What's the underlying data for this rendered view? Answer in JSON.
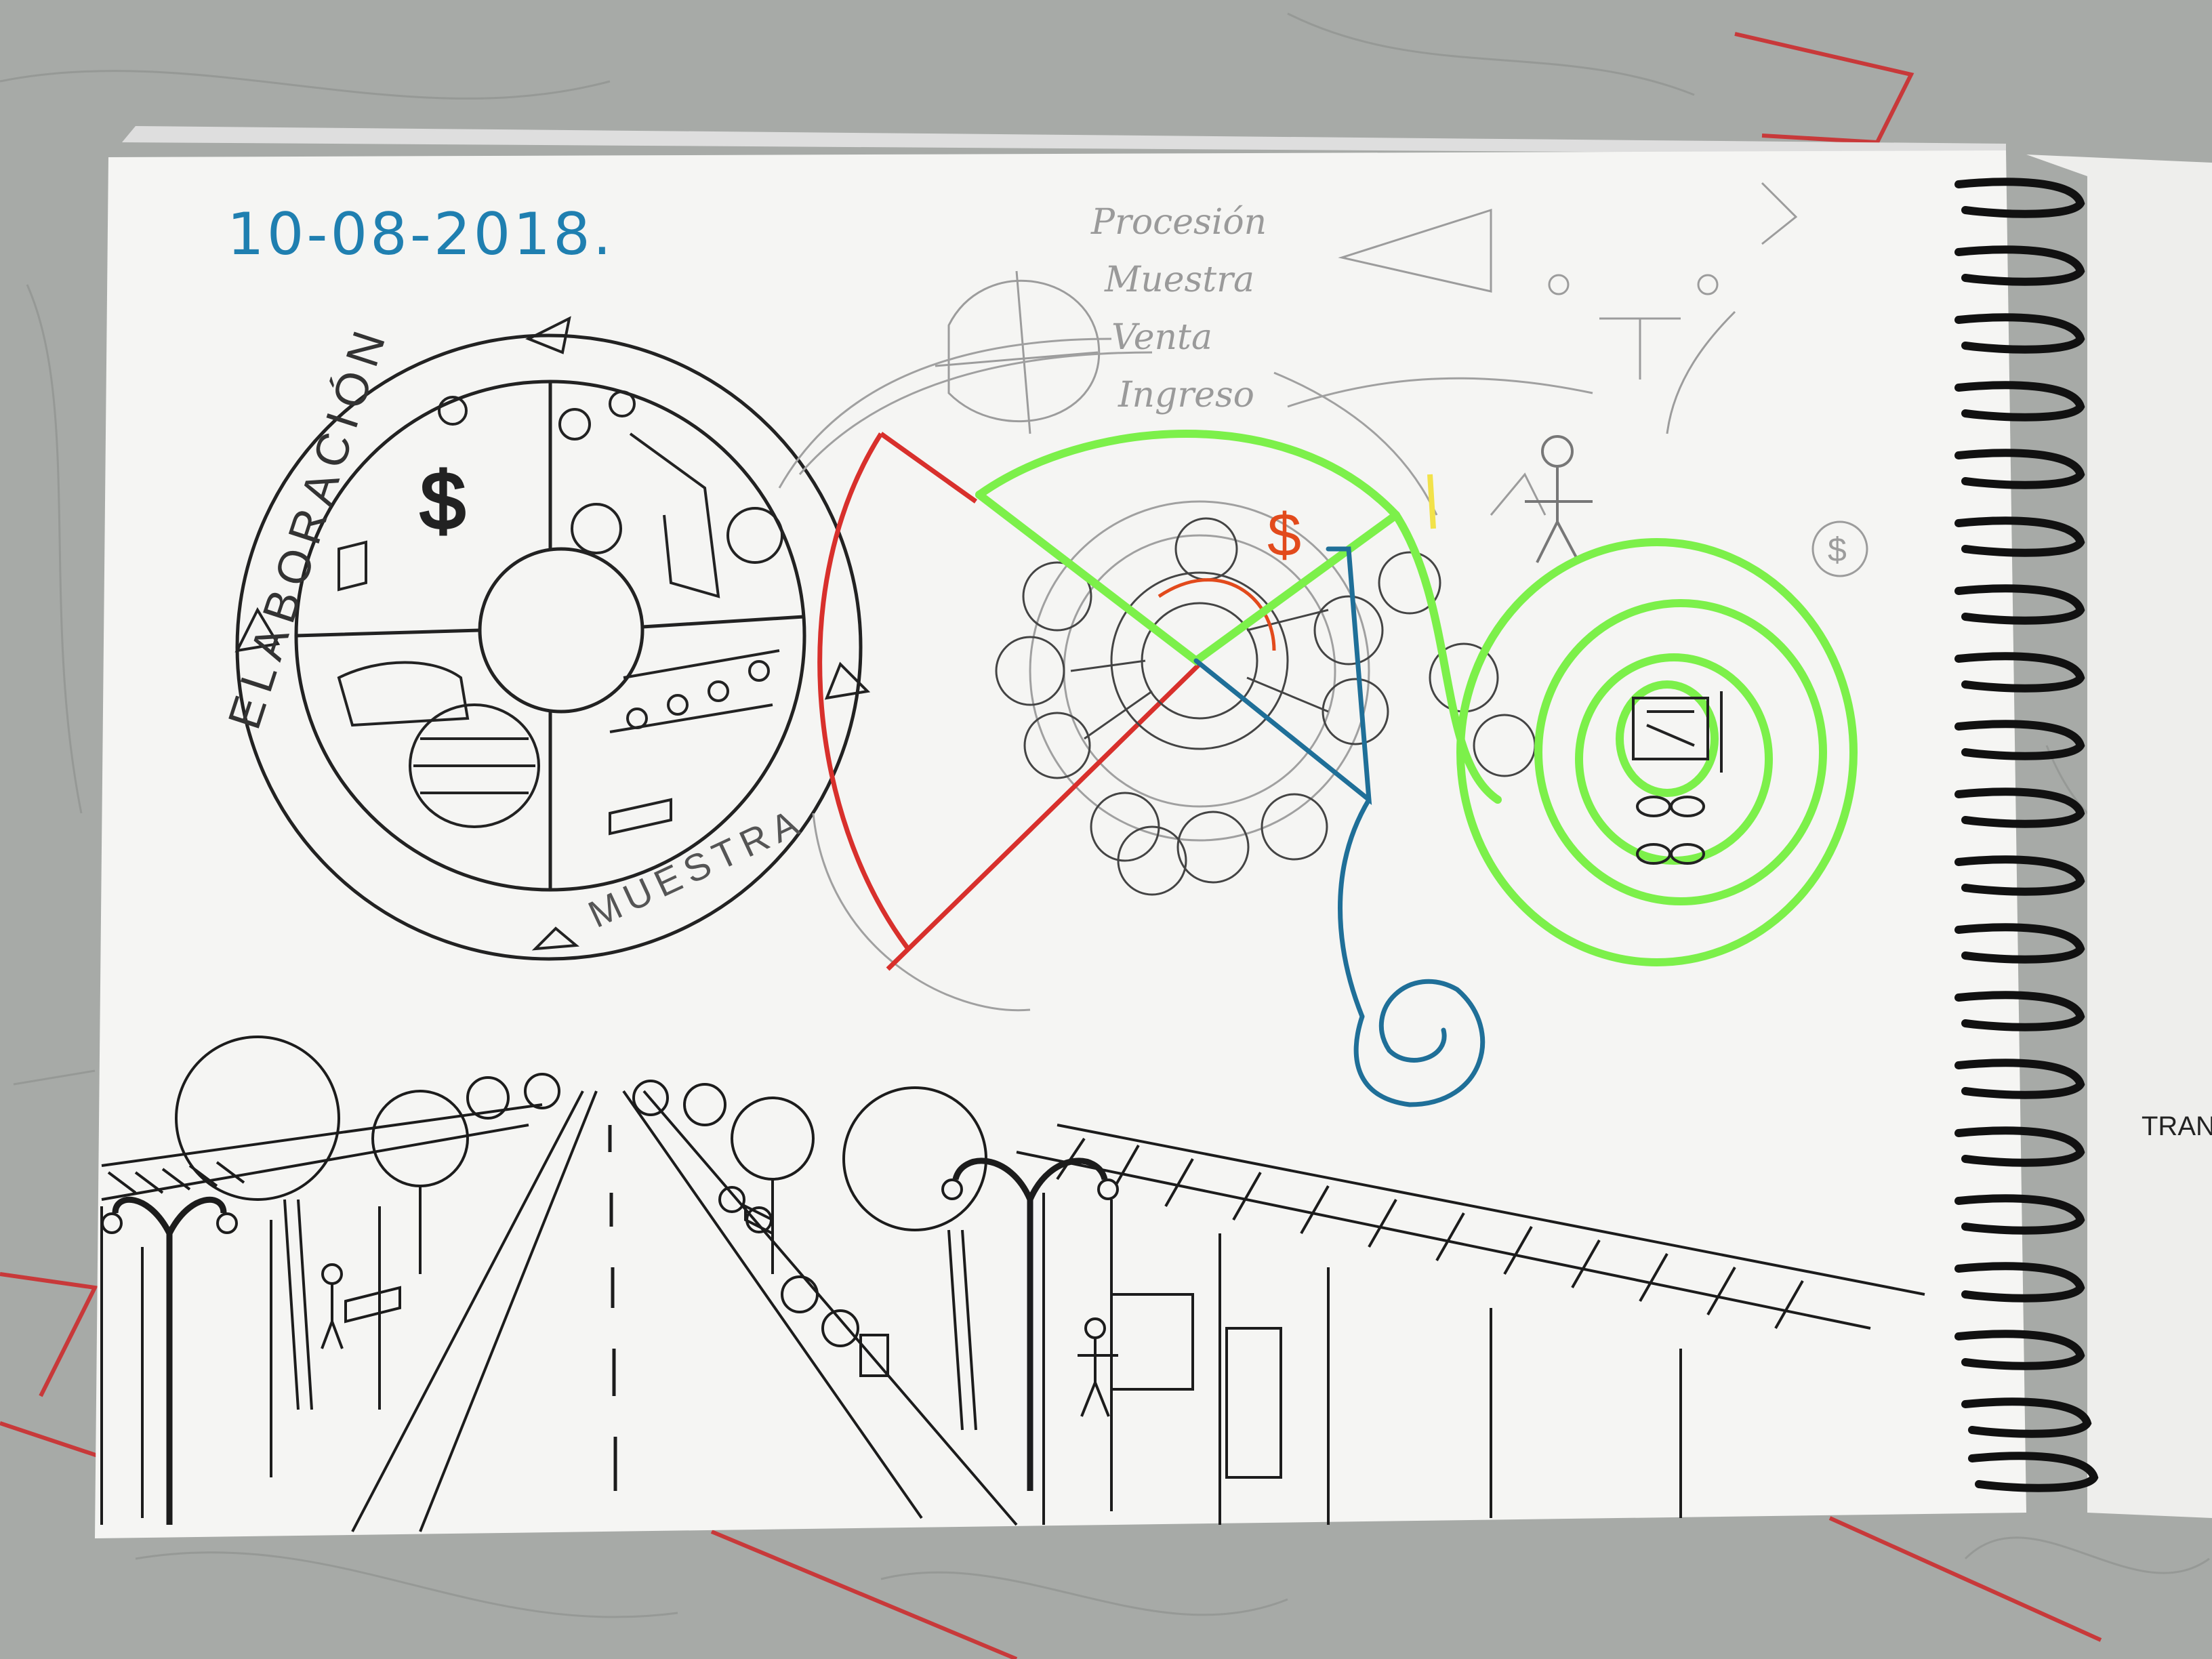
{
  "sketchbook": {
    "date": "10-08-2018.",
    "notes": [
      "Procesión",
      "Muestra",
      "Venta",
      "Ingreso"
    ],
    "ring_text": [
      "ELABORACIÓN",
      "MUESTRA"
    ],
    "dollar_mark": "$",
    "next_page_text": "TRANS"
  },
  "colors": {
    "table": "#a9aca9",
    "paper": "#f4f4f2",
    "pencil": "#8a8a8a",
    "ink": "#1c1c1c",
    "date_blue": "#1f7fb0",
    "marker_red": "#d8302c",
    "marker_green": "#7cf04a",
    "marker_blue": "#1f6f98",
    "marker_orange": "#e24a1c",
    "highlighter_yellow": "#f2e24a"
  },
  "icons": [
    "spiral-binding-icon",
    "street-lamp-icon",
    "tree-icon",
    "stick-figure-icon",
    "dollar-icon"
  ]
}
